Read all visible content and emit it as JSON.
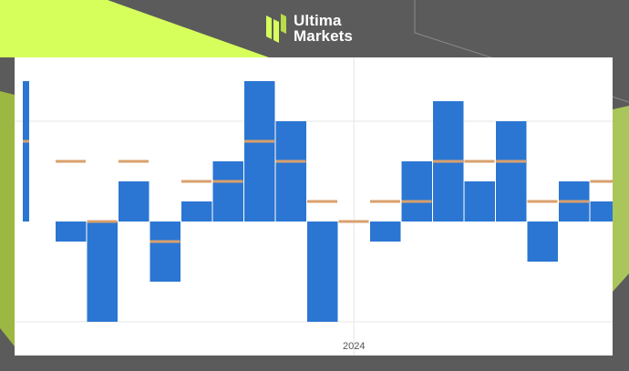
{
  "brand": {
    "name_line1": "Ultima",
    "name_line2": "Markets"
  },
  "colors": {
    "background": "#5b5b5b",
    "accent_green": "#d6ff5b",
    "bar": "#2b76d2",
    "marker": "#d9a06c",
    "grid": "#e6e6e6",
    "card": "#ffffff"
  },
  "chart_data": {
    "type": "bar",
    "title": "",
    "xlabel": "",
    "ylabel": "",
    "x_tick_labels": [
      "2024"
    ],
    "x_tick_at_index": 10.5,
    "grid": true,
    "ylim": [
      -5,
      7
    ],
    "y_gridlines": [
      -5,
      5
    ],
    "series": [
      {
        "style": "bars",
        "values": [
          7,
          -1,
          -5,
          2,
          -3,
          1,
          3,
          7,
          5,
          -5,
          0,
          -1,
          3,
          6,
          2,
          5,
          -2,
          2,
          1
        ]
      },
      {
        "style": "markers",
        "values": [
          4,
          3,
          0,
          3,
          -1,
          2,
          2,
          4,
          3,
          1,
          0,
          1,
          1,
          3,
          3,
          3,
          1,
          1,
          2
        ]
      }
    ]
  }
}
